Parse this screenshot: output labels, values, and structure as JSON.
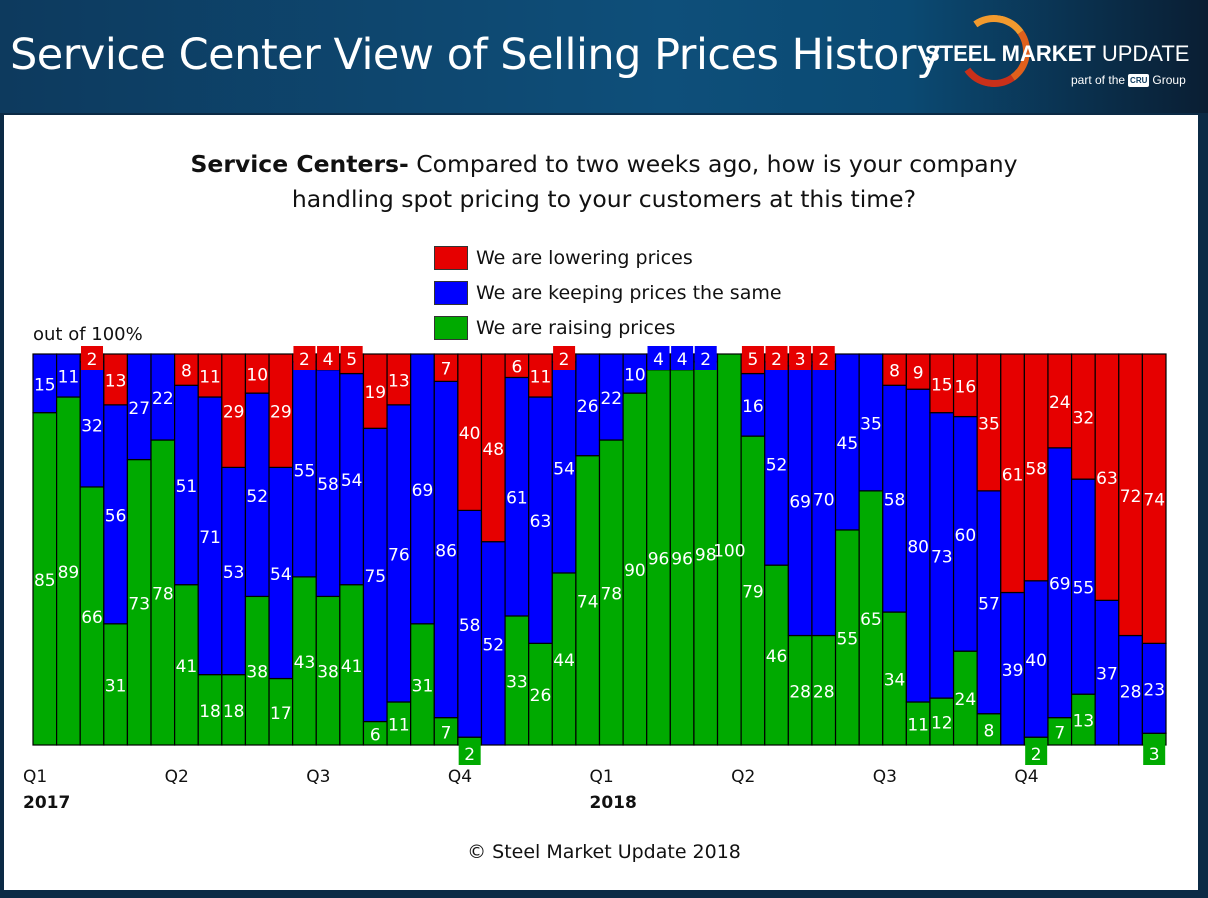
{
  "header": {
    "title": "Service Center View of Selling Prices History",
    "logo_text_bold": "STEEL MARKET",
    "logo_text_light": "UPDATE",
    "logo_sub_prefix": "part of the",
    "logo_sub_badge": "CRU",
    "logo_sub_suffix": "Group"
  },
  "chart_data": {
    "type": "bar",
    "stacked": true,
    "title_bold": "Service Centers-",
    "title_line1": " Compared to two weeks ago, how is your company",
    "title_line2": "handling spot pricing to your customers at this time?",
    "ylabel": "out of 100%",
    "ylim": [
      0,
      100
    ],
    "legend_placement": "top-center",
    "series": [
      {
        "name": "We are lowering prices",
        "color": "#e60000",
        "values": [
          0,
          0,
          2,
          13,
          0,
          0,
          8,
          11,
          29,
          10,
          29,
          2,
          4,
          5,
          19,
          13,
          0,
          7,
          40,
          48,
          6,
          11,
          2,
          0,
          0,
          0,
          0,
          0,
          0,
          0,
          5,
          2,
          3,
          2,
          0,
          0,
          8,
          9,
          15,
          16,
          35,
          61,
          58,
          24,
          32,
          63,
          72,
          74
        ]
      },
      {
        "name": "We are keeping prices the same",
        "color": "#0000ff",
        "values": [
          15,
          11,
          32,
          56,
          27,
          22,
          51,
          71,
          53,
          52,
          54,
          55,
          58,
          54,
          75,
          76,
          69,
          86,
          58,
          52,
          61,
          63,
          54,
          26,
          22,
          10,
          4,
          4,
          2,
          0,
          16,
          52,
          69,
          70,
          45,
          35,
          58,
          80,
          73,
          60,
          57,
          39,
          40,
          69,
          55,
          37,
          28,
          23
        ]
      },
      {
        "name": "We are raising prices",
        "color": "#00aa00",
        "values": [
          85,
          89,
          66,
          31,
          73,
          78,
          41,
          18,
          18,
          38,
          17,
          43,
          38,
          41,
          6,
          11,
          31,
          7,
          2,
          0,
          33,
          26,
          44,
          74,
          78,
          90,
          96,
          96,
          98,
          100,
          79,
          46,
          28,
          28,
          55,
          65,
          34,
          11,
          12,
          24,
          8,
          0,
          2,
          7,
          13,
          0,
          0,
          3
        ]
      }
    ],
    "quarter_ticks": [
      {
        "bar": 0,
        "label": "Q1",
        "year": "2017"
      },
      {
        "bar": 6,
        "label": "Q2",
        "year": ""
      },
      {
        "bar": 12,
        "label": "Q3",
        "year": ""
      },
      {
        "bar": 18,
        "label": "Q4",
        "year": ""
      },
      {
        "bar": 24,
        "label": "Q1",
        "year": "2018"
      },
      {
        "bar": 30,
        "label": "Q2",
        "year": ""
      },
      {
        "bar": 36,
        "label": "Q3",
        "year": ""
      },
      {
        "bar": 42,
        "label": "Q4",
        "year": ""
      }
    ]
  },
  "footer": {
    "copyright": "© Steel Market Update 2018"
  }
}
